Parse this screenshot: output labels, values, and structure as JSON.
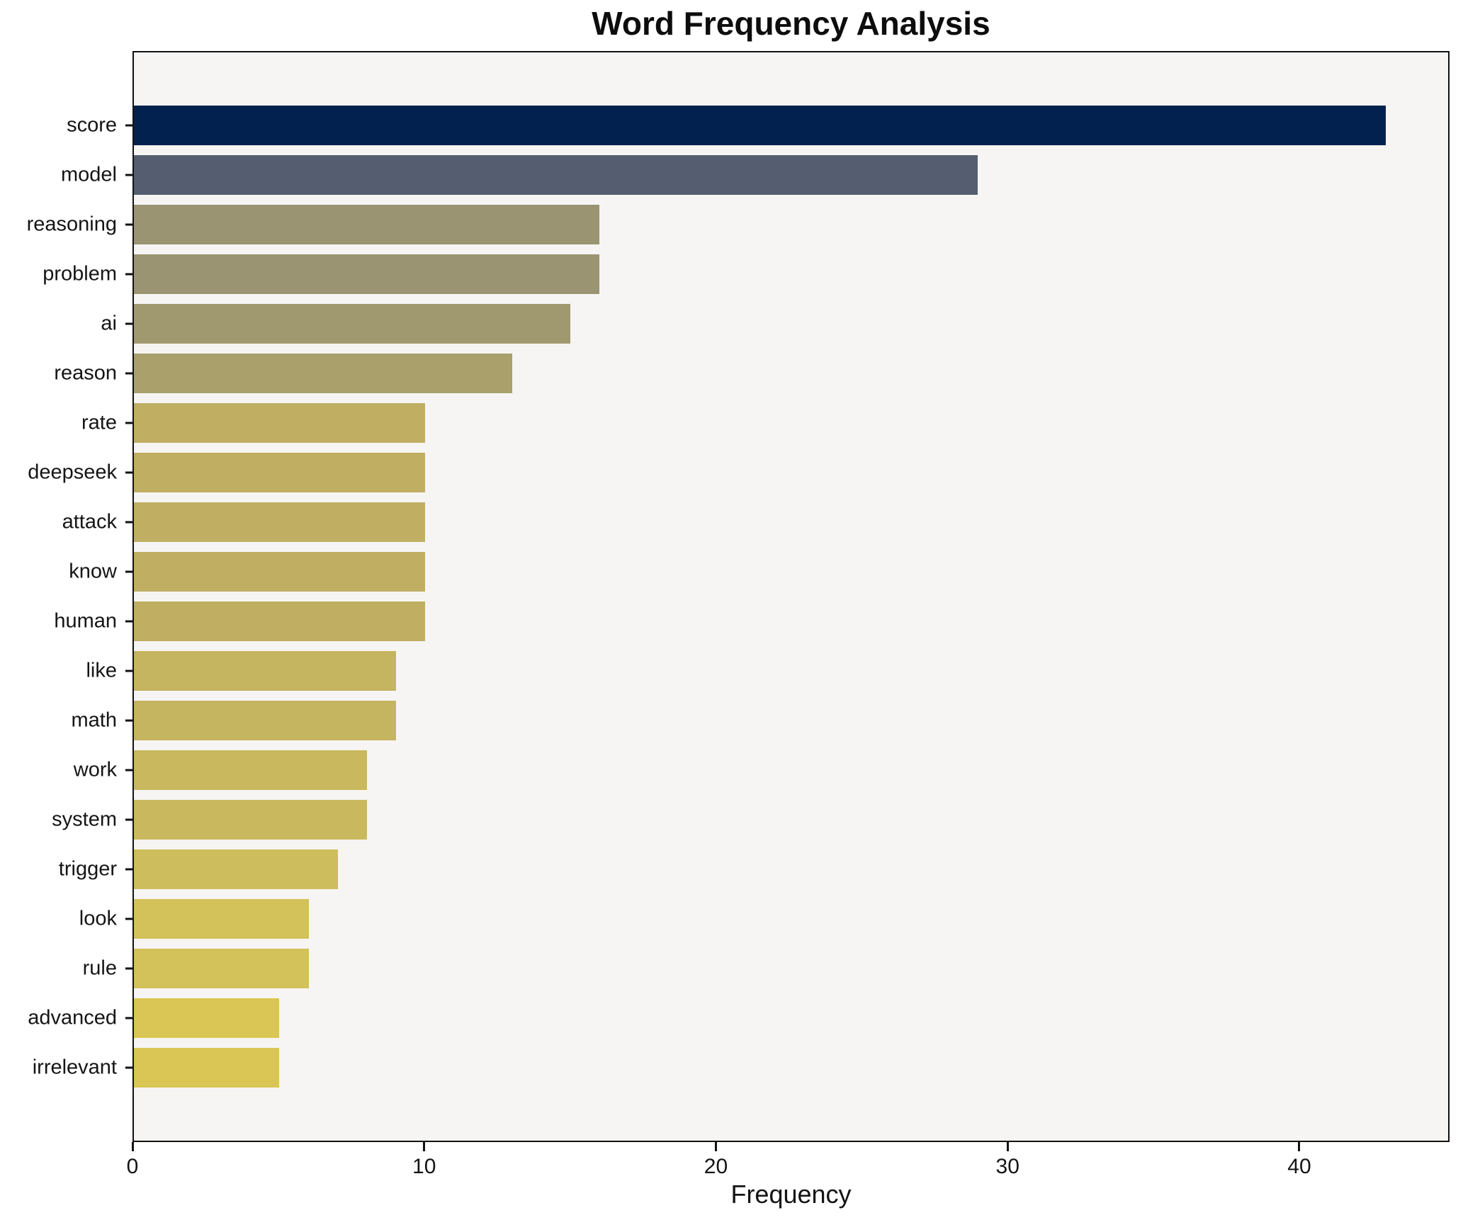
{
  "title": "Word Frequency Analysis",
  "chart_data": {
    "type": "bar",
    "orientation": "horizontal",
    "title": "Word Frequency Analysis",
    "xlabel": "Frequency",
    "ylabel": "",
    "categories": [
      "score",
      "model",
      "reasoning",
      "problem",
      "ai",
      "reason",
      "rate",
      "deepseek",
      "attack",
      "know",
      "human",
      "like",
      "math",
      "work",
      "system",
      "trigger",
      "look",
      "rule",
      "advanced",
      "irrelevant"
    ],
    "values": [
      43,
      29,
      16,
      16,
      15,
      13,
      10,
      10,
      10,
      10,
      10,
      9,
      9,
      8,
      8,
      7,
      6,
      6,
      5,
      5
    ],
    "bar_colors": [
      "#02214e",
      "#555e70",
      "#9a9473",
      "#9a9473",
      "#a0986f",
      "#a9a06b",
      "#c0af62",
      "#c0af62",
      "#c0af62",
      "#c0af62",
      "#c0af62",
      "#c5b460",
      "#c5b460",
      "#c9b85e",
      "#c9b85e",
      "#cebd5c",
      "#d3c159",
      "#d3c159",
      "#d9c654",
      "#d9c654"
    ],
    "x_ticks": [
      0,
      10,
      20,
      30,
      40
    ],
    "xlim": [
      0,
      45.15
    ],
    "grid": false,
    "legend": null,
    "bar_width_fraction": 0.8,
    "plot_background": "#f6f5f4",
    "figure_background": "#ffffff",
    "spine_color": "#121212"
  }
}
